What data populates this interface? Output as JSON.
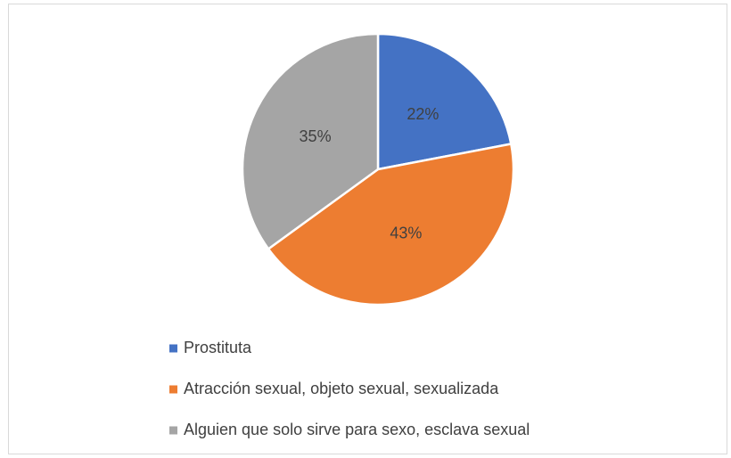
{
  "chart_data": {
    "type": "pie",
    "categories": [
      "Prostituta",
      "Atracción sexual, objeto sexual, sexualizada",
      "Alguien que solo sirve para sexo, esclava sexual"
    ],
    "values": [
      22,
      43,
      35
    ],
    "value_labels": [
      "22%",
      "43%",
      "35%"
    ],
    "colors": [
      "#4472c4",
      "#ed7d31",
      "#a5a5a5"
    ],
    "legend": "bottom"
  }
}
